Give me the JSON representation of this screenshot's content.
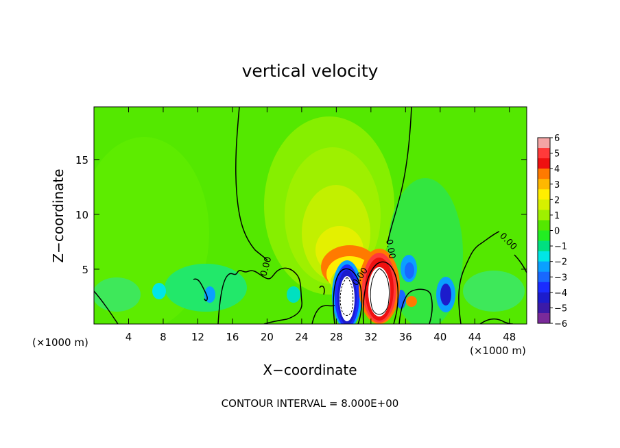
{
  "chart_data": {
    "type": "heatmap",
    "title": "vertical velocity",
    "xlabel": "X−coordinate",
    "ylabel": "Z−coordinate",
    "x_unit_left": "(×1000 m)",
    "x_unit_right": "(×1000 m)",
    "xlim": [
      0,
      50
    ],
    "ylim": [
      0,
      19.8
    ],
    "x_ticks": [
      "4",
      "8",
      "12",
      "16",
      "20",
      "24",
      "28",
      "32",
      "36",
      "40",
      "44",
      "48"
    ],
    "y_ticks": [
      "5",
      "10",
      "15"
    ],
    "x_tick_values": [
      4,
      8,
      12,
      16,
      20,
      24,
      28,
      32,
      36,
      40,
      44,
      48
    ],
    "y_tick_values": [
      5,
      10,
      15
    ],
    "colorbar": {
      "labels": [
        "6",
        "5",
        "4",
        "3",
        "2",
        "1",
        "0",
        "−1",
        "−2",
        "−3",
        "−4",
        "−5",
        "−6"
      ],
      "range": [
        -6,
        6
      ],
      "colors": [
        "#f4a5a5",
        "#ff3a3a",
        "#ee1010",
        "#ff7a00",
        "#ffb800",
        "#ffee00",
        "#d6f000",
        "#9ef000",
        "#54e800",
        "#22ee22",
        "#00e080",
        "#00e6e6",
        "#0aa0ff",
        "#1868ff",
        "#1a2cff",
        "#1c1ccc",
        "#3b1aa8",
        "#7a2a9a"
      ]
    },
    "contour_labels": [
      "0.00",
      "0.00",
      "0.00",
      "0.00"
    ],
    "footer": "CONTOUR INTERVAL = 8.000E+00"
  }
}
